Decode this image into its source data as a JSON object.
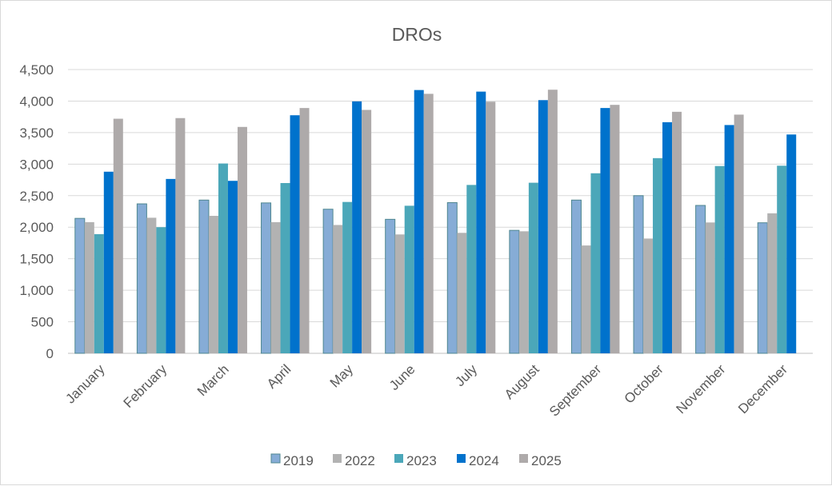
{
  "chart_data": {
    "type": "bar",
    "title": "DROs",
    "xlabel": "",
    "ylabel": "",
    "ylim": [
      0,
      4500
    ],
    "yticks": [
      "0",
      "500",
      "1,000",
      "1,500",
      "2,000",
      "2,500",
      "3,000",
      "3,500",
      "4,000",
      "4,500"
    ],
    "grid": true,
    "legend": "bottom",
    "categories": [
      "January",
      "February",
      "March",
      "April",
      "May",
      "June",
      "July",
      "August",
      "September",
      "October",
      "November",
      "December"
    ],
    "series": [
      {
        "name": "2019",
        "color": "#86acd6",
        "values": [
          2140,
          2370,
          2430,
          2385,
          2285,
          2125,
          2390,
          1950,
          2430,
          2500,
          2345,
          2070
        ]
      },
      {
        "name": "2022",
        "color": "#b2b2b2",
        "values": [
          2080,
          2150,
          2180,
          2080,
          2035,
          1885,
          1910,
          1935,
          1710,
          1820,
          2075,
          2220
        ]
      },
      {
        "name": "2023",
        "color": "#4ba7b9",
        "values": [
          1890,
          2000,
          3010,
          2700,
          2400,
          2340,
          2670,
          2705,
          2855,
          3095,
          2970,
          2975
        ]
      },
      {
        "name": "2024",
        "color": "#0072cc",
        "values": [
          2880,
          2765,
          2735,
          3775,
          3995,
          4175,
          4150,
          4015,
          3890,
          3665,
          3620,
          3470
        ]
      },
      {
        "name": "2025",
        "color": "#aeaaaa",
        "values": [
          3720,
          3730,
          3590,
          3890,
          3860,
          4115,
          3990,
          4180,
          3940,
          3830,
          3785,
          null
        ]
      }
    ]
  }
}
